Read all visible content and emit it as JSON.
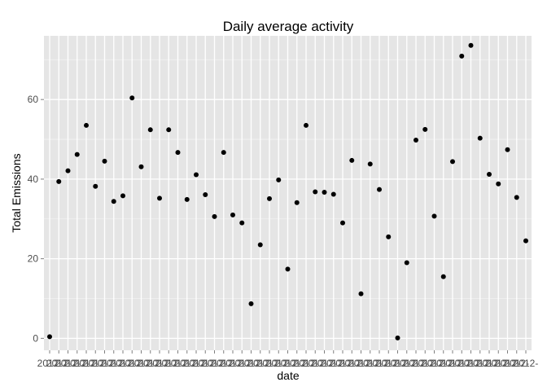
{
  "chart_data": {
    "type": "scatter",
    "title": "Daily average activity",
    "xlabel": "date",
    "ylabel": "Total Emissions",
    "ylim": [
      -3,
      76
    ],
    "yticks": [
      0,
      20,
      40,
      60
    ],
    "x_tick_label": "2012-",
    "grid": true,
    "colors": {
      "panel": "#e5e5e5",
      "grid_major": "#ffffff",
      "grid_minor": "#f2f2f2",
      "point": "#000000",
      "tick_label": "#4d4d4d"
    },
    "y": [
      0.4,
      39.4,
      42.1,
      46.2,
      53.5,
      38.2,
      44.5,
      34.4,
      35.8,
      60.4,
      43.1,
      52.4,
      35.2,
      52.4,
      46.7,
      34.9,
      41.1,
      36.1,
      30.6,
      46.7,
      31.0,
      29.0,
      8.7,
      23.5,
      35.1,
      39.8,
      17.4,
      34.1,
      53.5,
      36.8,
      36.7,
      36.2,
      29.0,
      44.7,
      11.2,
      43.8,
      37.4,
      25.5,
      0.1,
      19.0,
      49.8,
      52.5,
      30.7,
      15.5,
      44.4,
      70.9,
      73.6,
      50.3,
      41.2,
      38.8,
      47.4,
      35.4,
      24.5
    ]
  }
}
